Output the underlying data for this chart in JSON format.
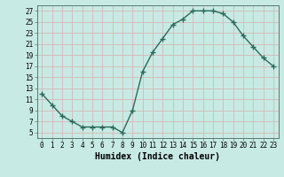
{
  "x": [
    0,
    1,
    2,
    3,
    4,
    5,
    6,
    7,
    8,
    9,
    10,
    11,
    12,
    13,
    14,
    15,
    16,
    17,
    18,
    19,
    20,
    21,
    22,
    23
  ],
  "y": [
    12,
    10,
    8,
    7,
    6,
    6,
    6,
    6,
    5,
    9,
    16,
    19.5,
    22,
    24.5,
    25.5,
    27,
    27,
    27,
    26.5,
    25,
    22.5,
    20.5,
    18.5,
    17
  ],
  "line_color": "#2a6b5a",
  "marker": "+",
  "marker_size": 4,
  "bg_color": "#c8eae4",
  "grid_color": "#d4b8b8",
  "xlabel": "Humidex (Indice chaleur)",
  "xlim": [
    -0.5,
    23.5
  ],
  "ylim": [
    4,
    28
  ],
  "yticks": [
    5,
    7,
    9,
    11,
    13,
    15,
    17,
    19,
    21,
    23,
    25,
    27
  ],
  "xticks": [
    0,
    1,
    2,
    3,
    4,
    5,
    6,
    7,
    8,
    9,
    10,
    11,
    12,
    13,
    14,
    15,
    16,
    17,
    18,
    19,
    20,
    21,
    22,
    23
  ],
  "tick_fontsize": 5.5,
  "label_fontsize": 7,
  "linewidth": 1.0,
  "marker_lw": 1.0
}
